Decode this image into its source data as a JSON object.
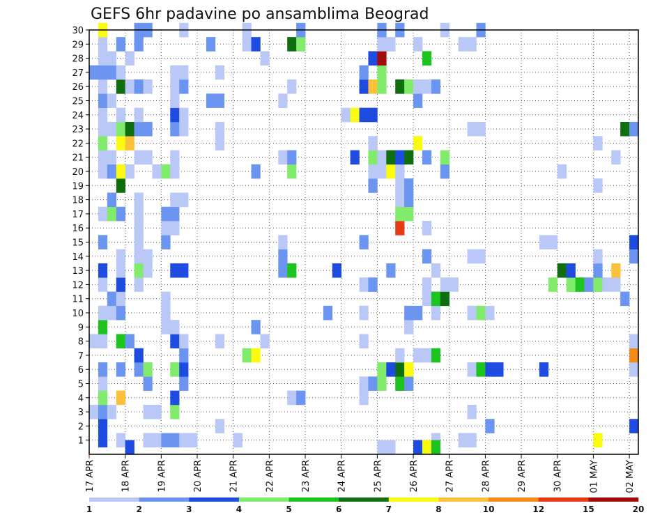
{
  "chart_data": {
    "type": "heatmap",
    "title": "GEFS 6hr padavine po ansamblima Beograd",
    "xlabel": "",
    "ylabel": "",
    "x_ticks": [
      "17 APR",
      "18 APR",
      "19 APR",
      "20 APR",
      "21 APR",
      "22 APR",
      "23 APR",
      "24 APR",
      "25 APR",
      "26 APR",
      "27 APR",
      "28 APR",
      "29 APR",
      "30 APR",
      "01 MAY",
      "02 MAY"
    ],
    "x_steps_per_day": 4,
    "x_total_steps": 61,
    "y_range": [
      0,
      30
    ],
    "y_ticks": [
      1,
      2,
      3,
      4,
      5,
      6,
      7,
      8,
      9,
      10,
      11,
      12,
      13,
      14,
      15,
      16,
      17,
      18,
      19,
      20,
      21,
      22,
      23,
      24,
      25,
      26,
      27,
      28,
      29,
      30
    ],
    "grid": true,
    "legend_placement": "bottom",
    "legend": {
      "bounds": [
        "1",
        "2",
        "3",
        "4",
        "5",
        "6",
        "7",
        "8",
        "10",
        "12",
        "15",
        "20"
      ],
      "colors": [
        "#b9c8f6",
        "#6b95f0",
        "#1f4ce0",
        "#81ec6c",
        "#1ec41e",
        "#0f6e0f",
        "#fbfa11",
        "#fbc13a",
        "#f58a18",
        "#e83a12",
        "#a10b0b"
      ]
    },
    "cells": [
      [
        1,
        1,
        2
      ],
      [
        1,
        3,
        0
      ],
      [
        1,
        6,
        0
      ],
      [
        1,
        7,
        0
      ],
      [
        1,
        8,
        1
      ],
      [
        1,
        9,
        1
      ],
      [
        1,
        10,
        0
      ],
      [
        1,
        11,
        0
      ],
      [
        1,
        16,
        0
      ],
      [
        1,
        38,
        0
      ],
      [
        1,
        41,
        0
      ],
      [
        1,
        42,
        0
      ],
      [
        1,
        56,
        6
      ],
      [
        2,
        1,
        2
      ],
      [
        2,
        14,
        0
      ],
      [
        2,
        44,
        1
      ],
      [
        2,
        60,
        2
      ],
      [
        3,
        0,
        0
      ],
      [
        3,
        1,
        1
      ],
      [
        3,
        2,
        0
      ],
      [
        3,
        6,
        0
      ],
      [
        3,
        7,
        0
      ],
      [
        3,
        9,
        3
      ],
      [
        3,
        42,
        0
      ],
      [
        4,
        1,
        3
      ],
      [
        4,
        3,
        7
      ],
      [
        4,
        9,
        2
      ],
      [
        4,
        22,
        0
      ],
      [
        4,
        23,
        1
      ],
      [
        4,
        30,
        0
      ],
      [
        5,
        1,
        0
      ],
      [
        5,
        6,
        1
      ],
      [
        5,
        10,
        1
      ],
      [
        5,
        30,
        0
      ],
      [
        5,
        31,
        1
      ],
      [
        5,
        32,
        3
      ],
      [
        5,
        34,
        4
      ],
      [
        5,
        35,
        1
      ],
      [
        6,
        1,
        1
      ],
      [
        6,
        3,
        1
      ],
      [
        6,
        5,
        1
      ],
      [
        6,
        6,
        3
      ],
      [
        6,
        9,
        3
      ],
      [
        6,
        10,
        2
      ],
      [
        6,
        32,
        3
      ],
      [
        6,
        33,
        2
      ],
      [
        6,
        34,
        5
      ],
      [
        6,
        35,
        6
      ],
      [
        6,
        42,
        0
      ],
      [
        6,
        43,
        4
      ],
      [
        6,
        44,
        2
      ],
      [
        6,
        45,
        2
      ],
      [
        6,
        50,
        2
      ],
      [
        6,
        60,
        0
      ],
      [
        7,
        5,
        2
      ],
      [
        7,
        10,
        1
      ],
      [
        7,
        17,
        3
      ],
      [
        7,
        18,
        6
      ],
      [
        7,
        34,
        0
      ],
      [
        7,
        36,
        0
      ],
      [
        7,
        37,
        0
      ],
      [
        7,
        38,
        4
      ],
      [
        7,
        60,
        8
      ],
      [
        8,
        0,
        0
      ],
      [
        8,
        1,
        0
      ],
      [
        8,
        3,
        4
      ],
      [
        8,
        4,
        1
      ],
      [
        8,
        9,
        2
      ],
      [
        8,
        10,
        0
      ],
      [
        8,
        14,
        0
      ],
      [
        8,
        19,
        0
      ],
      [
        8,
        30,
        0
      ],
      [
        8,
        60,
        0
      ],
      [
        9,
        1,
        4
      ],
      [
        9,
        8,
        0
      ],
      [
        9,
        9,
        0
      ],
      [
        9,
        18,
        1
      ],
      [
        9,
        35,
        0
      ],
      [
        10,
        1,
        0
      ],
      [
        10,
        2,
        0
      ],
      [
        10,
        3,
        1
      ],
      [
        10,
        8,
        0
      ],
      [
        10,
        26,
        1
      ],
      [
        10,
        30,
        0
      ],
      [
        10,
        35,
        1
      ],
      [
        10,
        36,
        1
      ],
      [
        10,
        38,
        0
      ],
      [
        10,
        42,
        0
      ],
      [
        10,
        43,
        3
      ],
      [
        10,
        44,
        0
      ],
      [
        11,
        2,
        1
      ],
      [
        11,
        3,
        0
      ],
      [
        11,
        8,
        0
      ],
      [
        11,
        37,
        0
      ],
      [
        11,
        38,
        4
      ],
      [
        11,
        39,
        5
      ],
      [
        11,
        59,
        1
      ],
      [
        12,
        1,
        0
      ],
      [
        12,
        3,
        2
      ],
      [
        12,
        5,
        0
      ],
      [
        12,
        30,
        0
      ],
      [
        12,
        31,
        1
      ],
      [
        12,
        37,
        0
      ],
      [
        12,
        39,
        0
      ],
      [
        12,
        40,
        0
      ],
      [
        12,
        51,
        3
      ],
      [
        12,
        53,
        3
      ],
      [
        12,
        54,
        4
      ],
      [
        12,
        55,
        1
      ],
      [
        12,
        56,
        3
      ],
      [
        12,
        57,
        0
      ],
      [
        12,
        58,
        0
      ],
      [
        13,
        1,
        2
      ],
      [
        13,
        3,
        0
      ],
      [
        13,
        5,
        3
      ],
      [
        13,
        6,
        0
      ],
      [
        13,
        9,
        2
      ],
      [
        13,
        10,
        2
      ],
      [
        13,
        21,
        1
      ],
      [
        13,
        22,
        4
      ],
      [
        13,
        27,
        2
      ],
      [
        13,
        33,
        1
      ],
      [
        13,
        38,
        0
      ],
      [
        13,
        52,
        5
      ],
      [
        13,
        53,
        2
      ],
      [
        13,
        56,
        1
      ],
      [
        13,
        58,
        7
      ],
      [
        14,
        3,
        0
      ],
      [
        14,
        5,
        0
      ],
      [
        14,
        6,
        0
      ],
      [
        14,
        21,
        1
      ],
      [
        14,
        37,
        1
      ],
      [
        14,
        42,
        0
      ],
      [
        14,
        43,
        0
      ],
      [
        14,
        56,
        0
      ],
      [
        14,
        60,
        1
      ],
      [
        15,
        1,
        1
      ],
      [
        15,
        5,
        0
      ],
      [
        15,
        8,
        1
      ],
      [
        15,
        21,
        0
      ],
      [
        15,
        30,
        1
      ],
      [
        15,
        50,
        0
      ],
      [
        15,
        51,
        0
      ],
      [
        15,
        60,
        2
      ],
      [
        16,
        5,
        0
      ],
      [
        16,
        8,
        0
      ],
      [
        16,
        9,
        0
      ],
      [
        16,
        34,
        9
      ],
      [
        16,
        37,
        0
      ],
      [
        17,
        1,
        0
      ],
      [
        17,
        2,
        3
      ],
      [
        17,
        3,
        1
      ],
      [
        17,
        5,
        0
      ],
      [
        17,
        8,
        1
      ],
      [
        17,
        9,
        1
      ],
      [
        17,
        34,
        3
      ],
      [
        17,
        35,
        3
      ],
      [
        18,
        2,
        1
      ],
      [
        18,
        5,
        0
      ],
      [
        18,
        9,
        0
      ],
      [
        18,
        10,
        0
      ],
      [
        18,
        34,
        0
      ],
      [
        18,
        35,
        1
      ],
      [
        19,
        3,
        5
      ],
      [
        19,
        31,
        1
      ],
      [
        19,
        34,
        0
      ],
      [
        19,
        35,
        1
      ],
      [
        19,
        56,
        0
      ],
      [
        20,
        1,
        0
      ],
      [
        20,
        2,
        1
      ],
      [
        20,
        3,
        6
      ],
      [
        20,
        4,
        0
      ],
      [
        20,
        7,
        0
      ],
      [
        20,
        8,
        3
      ],
      [
        20,
        9,
        0
      ],
      [
        20,
        18,
        1
      ],
      [
        20,
        22,
        3
      ],
      [
        20,
        31,
        0
      ],
      [
        20,
        32,
        0
      ],
      [
        20,
        33,
        6
      ],
      [
        20,
        34,
        0
      ],
      [
        20,
        39,
        1
      ],
      [
        20,
        52,
        0
      ],
      [
        21,
        1,
        0
      ],
      [
        21,
        2,
        0
      ],
      [
        21,
        5,
        0
      ],
      [
        21,
        6,
        0
      ],
      [
        21,
        9,
        0
      ],
      [
        21,
        21,
        0
      ],
      [
        21,
        22,
        1
      ],
      [
        21,
        29,
        2
      ],
      [
        21,
        31,
        3
      ],
      [
        21,
        32,
        0
      ],
      [
        21,
        33,
        5
      ],
      [
        21,
        34,
        2
      ],
      [
        21,
        35,
        5
      ],
      [
        21,
        37,
        1
      ],
      [
        21,
        39,
        3
      ],
      [
        21,
        58,
        0
      ],
      [
        22,
        1,
        3
      ],
      [
        22,
        3,
        6
      ],
      [
        22,
        4,
        7
      ],
      [
        22,
        14,
        0
      ],
      [
        22,
        31,
        0
      ],
      [
        22,
        36,
        6
      ],
      [
        22,
        56,
        0
      ],
      [
        23,
        1,
        0
      ],
      [
        23,
        2,
        0
      ],
      [
        23,
        3,
        3
      ],
      [
        23,
        4,
        5
      ],
      [
        23,
        5,
        1
      ],
      [
        23,
        6,
        1
      ],
      [
        23,
        9,
        1
      ],
      [
        23,
        10,
        0
      ],
      [
        23,
        14,
        0
      ],
      [
        23,
        42,
        0
      ],
      [
        23,
        43,
        0
      ],
      [
        23,
        59,
        5
      ],
      [
        23,
        60,
        1
      ],
      [
        24,
        1,
        0
      ],
      [
        24,
        3,
        0
      ],
      [
        24,
        5,
        0
      ],
      [
        24,
        9,
        2
      ],
      [
        24,
        10,
        0
      ],
      [
        24,
        28,
        0
      ],
      [
        24,
        29,
        6
      ],
      [
        24,
        30,
        2
      ],
      [
        24,
        31,
        2
      ],
      [
        25,
        1,
        1
      ],
      [
        25,
        2,
        0
      ],
      [
        25,
        9,
        0
      ],
      [
        25,
        13,
        1
      ],
      [
        25,
        14,
        1
      ],
      [
        25,
        21,
        0
      ],
      [
        25,
        36,
        1
      ],
      [
        26,
        1,
        0
      ],
      [
        26,
        3,
        5
      ],
      [
        26,
        4,
        0
      ],
      [
        26,
        5,
        1
      ],
      [
        26,
        6,
        0
      ],
      [
        26,
        9,
        0
      ],
      [
        26,
        10,
        1
      ],
      [
        26,
        22,
        0
      ],
      [
        26,
        30,
        2
      ],
      [
        26,
        31,
        7
      ],
      [
        26,
        32,
        3
      ],
      [
        26,
        34,
        5
      ],
      [
        26,
        35,
        3
      ],
      [
        26,
        36,
        0
      ],
      [
        26,
        37,
        0
      ],
      [
        26,
        38,
        1
      ],
      [
        27,
        0,
        1
      ],
      [
        27,
        1,
        1
      ],
      [
        27,
        2,
        1
      ],
      [
        27,
        3,
        0
      ],
      [
        27,
        9,
        0
      ],
      [
        27,
        10,
        0
      ],
      [
        27,
        14,
        0
      ],
      [
        27,
        30,
        1
      ],
      [
        27,
        32,
        3
      ],
      [
        28,
        1,
        0
      ],
      [
        28,
        2,
        0
      ],
      [
        28,
        4,
        0
      ],
      [
        28,
        19,
        0
      ],
      [
        28,
        31,
        2
      ],
      [
        28,
        32,
        10
      ],
      [
        28,
        37,
        4
      ],
      [
        29,
        1,
        0
      ],
      [
        29,
        3,
        1
      ],
      [
        29,
        5,
        1
      ],
      [
        29,
        13,
        1
      ],
      [
        29,
        17,
        0
      ],
      [
        29,
        18,
        2
      ],
      [
        29,
        22,
        5
      ],
      [
        29,
        23,
        3
      ],
      [
        29,
        32,
        0
      ],
      [
        29,
        33,
        0
      ],
      [
        29,
        36,
        0
      ],
      [
        29,
        41,
        0
      ],
      [
        29,
        42,
        0
      ],
      [
        30,
        1,
        6
      ],
      [
        30,
        5,
        1
      ],
      [
        30,
        6,
        1
      ],
      [
        30,
        10,
        0
      ],
      [
        30,
        17,
        0
      ],
      [
        30,
        23,
        1
      ],
      [
        30,
        32,
        1
      ],
      [
        30,
        34,
        1
      ],
      [
        30,
        39,
        0
      ],
      [
        30,
        43,
        1
      ],
      [
        0.5,
        4,
        2
      ],
      [
        0.5,
        32,
        0
      ],
      [
        0.5,
        33,
        0
      ],
      [
        0.5,
        36,
        2
      ],
      [
        0.5,
        37,
        6
      ],
      [
        0.5,
        38,
        4
      ]
    ]
  }
}
